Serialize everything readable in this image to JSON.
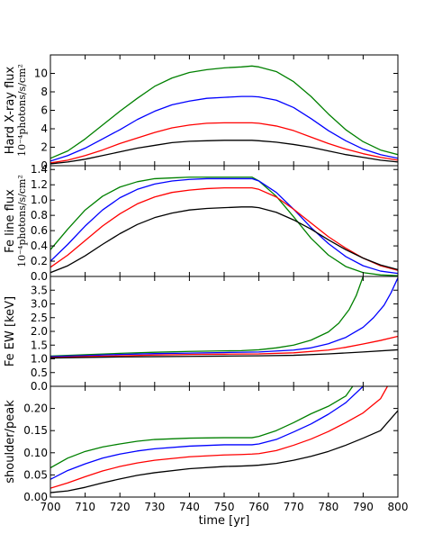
{
  "chart_data": [
    {
      "type": "line",
      "panel": "hard-xray-flux",
      "ylabel": "Hard X-ray flux",
      "ylabel_units": "10⁻⁴photons/s/cm²",
      "ylim": [
        0,
        12
      ],
      "yticks": [
        0,
        2,
        4,
        6,
        8,
        10
      ],
      "ytick_labels": [
        "0",
        "2",
        "4",
        "6",
        "8",
        "10"
      ],
      "series": [
        {
          "color": "#008000",
          "x": [
            700,
            705,
            710,
            715,
            720,
            725,
            730,
            735,
            740,
            745,
            750,
            755,
            758,
            760,
            765,
            770,
            775,
            780,
            785,
            790,
            795,
            800
          ],
          "y": [
            0.8,
            1.6,
            2.9,
            4.4,
            5.9,
            7.3,
            8.6,
            9.5,
            10.1,
            10.4,
            10.6,
            10.7,
            10.8,
            10.7,
            10.2,
            9.1,
            7.5,
            5.6,
            3.9,
            2.6,
            1.7,
            1.2
          ]
        },
        {
          "color": "#0000ff",
          "x": [
            700,
            705,
            710,
            715,
            720,
            725,
            730,
            735,
            740,
            745,
            750,
            755,
            758,
            760,
            765,
            770,
            775,
            780,
            785,
            790,
            795,
            800
          ],
          "y": [
            0.5,
            1.1,
            1.9,
            2.9,
            3.9,
            5.0,
            5.9,
            6.6,
            7.0,
            7.3,
            7.4,
            7.5,
            7.5,
            7.45,
            7.1,
            6.3,
            5.1,
            3.8,
            2.7,
            1.8,
            1.2,
            0.8
          ]
        },
        {
          "color": "#ff0000",
          "x": [
            700,
            705,
            710,
            715,
            720,
            725,
            730,
            735,
            740,
            745,
            750,
            755,
            758,
            760,
            765,
            770,
            775,
            780,
            785,
            790,
            795,
            800
          ],
          "y": [
            0.3,
            0.6,
            1.1,
            1.7,
            2.4,
            3.0,
            3.6,
            4.1,
            4.4,
            4.6,
            4.65,
            4.65,
            4.65,
            4.6,
            4.3,
            3.8,
            3.1,
            2.4,
            1.8,
            1.3,
            0.9,
            0.6
          ]
        },
        {
          "color": "#000000",
          "x": [
            700,
            705,
            710,
            715,
            720,
            725,
            730,
            735,
            740,
            745,
            750,
            755,
            758,
            760,
            765,
            770,
            775,
            780,
            785,
            790,
            795,
            800
          ],
          "y": [
            0.2,
            0.4,
            0.7,
            1.1,
            1.5,
            1.9,
            2.2,
            2.5,
            2.65,
            2.7,
            2.75,
            2.75,
            2.75,
            2.7,
            2.55,
            2.3,
            2.0,
            1.6,
            1.2,
            0.9,
            0.6,
            0.4
          ]
        }
      ]
    },
    {
      "type": "line",
      "panel": "fe-line-flux",
      "ylabel": "Fe line flux",
      "ylabel_units": "10⁻⁴photons/s/cm²",
      "ylim": [
        0,
        1.45
      ],
      "yticks": [
        0.0,
        0.2,
        0.4,
        0.6,
        0.8,
        1.0,
        1.2,
        1.4
      ],
      "ytick_labels": [
        "0.0",
        "0.2",
        "0.4",
        "0.6",
        "0.8",
        "1.0",
        "1.2",
        "1.4"
      ],
      "series": [
        {
          "color": "#008000",
          "x": [
            700,
            705,
            710,
            715,
            720,
            725,
            730,
            735,
            740,
            745,
            750,
            755,
            758,
            760,
            765,
            770,
            775,
            780,
            785,
            790,
            795,
            800
          ],
          "y": [
            0.35,
            0.62,
            0.87,
            1.05,
            1.17,
            1.24,
            1.28,
            1.29,
            1.3,
            1.3,
            1.3,
            1.3,
            1.3,
            1.25,
            1.05,
            0.78,
            0.5,
            0.28,
            0.13,
            0.05,
            0.02,
            0.01
          ]
        },
        {
          "color": "#0000ff",
          "x": [
            700,
            705,
            710,
            715,
            720,
            725,
            730,
            735,
            740,
            745,
            750,
            755,
            758,
            760,
            765,
            770,
            775,
            780,
            785,
            790,
            795,
            800
          ],
          "y": [
            0.2,
            0.42,
            0.66,
            0.87,
            1.03,
            1.14,
            1.21,
            1.25,
            1.27,
            1.28,
            1.28,
            1.28,
            1.28,
            1.25,
            1.1,
            0.88,
            0.64,
            0.43,
            0.26,
            0.14,
            0.07,
            0.04
          ]
        },
        {
          "color": "#ff0000",
          "x": [
            700,
            705,
            710,
            715,
            720,
            725,
            730,
            735,
            740,
            745,
            750,
            755,
            758,
            760,
            765,
            770,
            775,
            780,
            785,
            790,
            795,
            800
          ],
          "y": [
            0.12,
            0.28,
            0.47,
            0.66,
            0.82,
            0.95,
            1.04,
            1.1,
            1.13,
            1.15,
            1.16,
            1.16,
            1.16,
            1.14,
            1.04,
            0.88,
            0.7,
            0.52,
            0.37,
            0.24,
            0.14,
            0.08
          ]
        },
        {
          "color": "#000000",
          "x": [
            700,
            705,
            710,
            715,
            720,
            725,
            730,
            735,
            740,
            745,
            750,
            755,
            758,
            760,
            765,
            770,
            775,
            780,
            785,
            790,
            795,
            800
          ],
          "y": [
            0.05,
            0.14,
            0.27,
            0.42,
            0.56,
            0.68,
            0.77,
            0.83,
            0.87,
            0.89,
            0.9,
            0.91,
            0.91,
            0.9,
            0.84,
            0.74,
            0.62,
            0.48,
            0.35,
            0.24,
            0.15,
            0.09
          ]
        }
      ]
    },
    {
      "type": "line",
      "panel": "fe-ew",
      "ylabel": "Fe EW [keV]",
      "ylim": [
        0,
        4
      ],
      "yticks": [
        0.0,
        0.5,
        1.0,
        1.5,
        2.0,
        2.5,
        3.0,
        3.5
      ],
      "ytick_labels": [
        "0.0",
        "0.5",
        "1.0",
        "1.5",
        "2.0",
        "2.5",
        "3.0",
        "3.5"
      ],
      "series": [
        {
          "color": "#008000",
          "x": [
            700,
            710,
            720,
            730,
            740,
            750,
            755,
            760,
            765,
            770,
            775,
            780,
            783,
            786,
            788,
            790
          ],
          "y": [
            1.1,
            1.15,
            1.2,
            1.24,
            1.27,
            1.29,
            1.3,
            1.33,
            1.4,
            1.5,
            1.68,
            1.98,
            2.3,
            2.8,
            3.3,
            4.0
          ]
        },
        {
          "color": "#0000ff",
          "x": [
            700,
            710,
            720,
            730,
            740,
            750,
            760,
            770,
            775,
            780,
            785,
            790,
            793,
            796,
            798,
            800
          ],
          "y": [
            1.08,
            1.12,
            1.16,
            1.19,
            1.21,
            1.23,
            1.25,
            1.32,
            1.4,
            1.55,
            1.78,
            2.15,
            2.5,
            2.95,
            3.4,
            3.95
          ]
        },
        {
          "color": "#ff0000",
          "x": [
            700,
            710,
            720,
            730,
            740,
            750,
            760,
            770,
            780,
            785,
            790,
            795,
            800
          ],
          "y": [
            1.05,
            1.08,
            1.11,
            1.14,
            1.16,
            1.17,
            1.18,
            1.22,
            1.32,
            1.42,
            1.54,
            1.67,
            1.82
          ]
        },
        {
          "color": "#000000",
          "x": [
            700,
            710,
            720,
            730,
            740,
            750,
            760,
            770,
            780,
            790,
            800
          ],
          "y": [
            1.03,
            1.05,
            1.07,
            1.08,
            1.09,
            1.1,
            1.11,
            1.13,
            1.18,
            1.25,
            1.33
          ]
        }
      ]
    },
    {
      "type": "line",
      "panel": "shoulder-peak",
      "ylabel": "shoulder/peak",
      "ylim": [
        0,
        0.25
      ],
      "yticks": [
        0.0,
        0.05,
        0.1,
        0.15,
        0.2
      ],
      "ytick_labels": [
        "0.00",
        "0.05",
        "0.10",
        "0.15",
        "0.20"
      ],
      "series": [
        {
          "color": "#008000",
          "x": [
            700,
            705,
            710,
            715,
            720,
            725,
            730,
            740,
            750,
            755,
            758,
            760,
            765,
            770,
            775,
            780,
            785,
            787
          ],
          "y": [
            0.066,
            0.088,
            0.103,
            0.113,
            0.12,
            0.126,
            0.13,
            0.133,
            0.134,
            0.134,
            0.134,
            0.137,
            0.15,
            0.168,
            0.188,
            0.205,
            0.228,
            0.25
          ]
        },
        {
          "color": "#0000ff",
          "x": [
            700,
            705,
            710,
            715,
            720,
            725,
            730,
            740,
            750,
            755,
            758,
            760,
            765,
            770,
            775,
            780,
            785,
            790
          ],
          "y": [
            0.04,
            0.06,
            0.075,
            0.088,
            0.097,
            0.104,
            0.109,
            0.115,
            0.118,
            0.118,
            0.118,
            0.12,
            0.13,
            0.147,
            0.165,
            0.187,
            0.213,
            0.25
          ]
        },
        {
          "color": "#ff0000",
          "x": [
            700,
            705,
            710,
            715,
            720,
            725,
            730,
            740,
            750,
            755,
            758,
            760,
            765,
            770,
            775,
            780,
            785,
            790,
            795,
            797
          ],
          "y": [
            0.02,
            0.032,
            0.046,
            0.059,
            0.069,
            0.077,
            0.083,
            0.091,
            0.095,
            0.096,
            0.097,
            0.098,
            0.105,
            0.117,
            0.131,
            0.148,
            0.168,
            0.19,
            0.222,
            0.25
          ]
        },
        {
          "color": "#000000",
          "x": [
            700,
            705,
            710,
            715,
            720,
            725,
            730,
            740,
            750,
            755,
            758,
            760,
            765,
            770,
            775,
            780,
            785,
            790,
            795,
            800
          ],
          "y": [
            0.01,
            0.014,
            0.022,
            0.032,
            0.041,
            0.049,
            0.055,
            0.064,
            0.069,
            0.07,
            0.071,
            0.072,
            0.076,
            0.083,
            0.092,
            0.103,
            0.117,
            0.133,
            0.15,
            0.195
          ]
        }
      ]
    }
  ],
  "shared_x": {
    "xlabel": "time [yr]",
    "xlim": [
      700,
      800
    ],
    "xticks": [
      700,
      710,
      720,
      730,
      740,
      750,
      760,
      770,
      780,
      790,
      800
    ],
    "xtick_labels": [
      "700",
      "710",
      "720",
      "730",
      "740",
      "750",
      "760",
      "770",
      "780",
      "790",
      "800"
    ]
  }
}
